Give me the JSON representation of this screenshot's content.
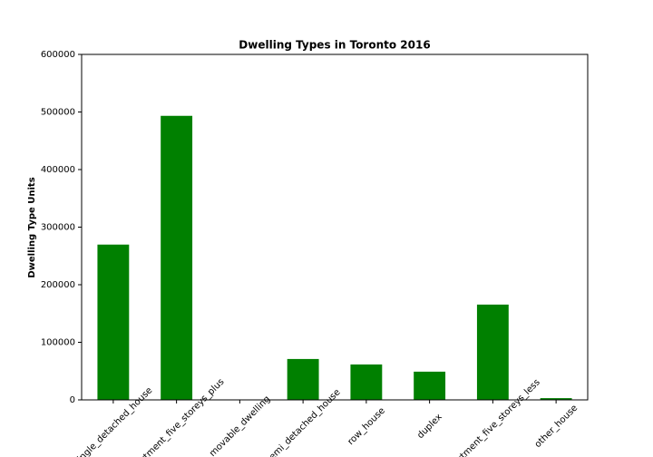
{
  "chart_data": {
    "type": "bar",
    "title": "Dwelling Types in Toronto 2016",
    "y_label": "Dwelling Type Units",
    "categories": [
      "single_detached_house",
      "apartment_five_storeys_plus",
      "movable_dwelling",
      "semi_detached_house",
      "row_house",
      "duplex",
      "apartment_five_storeys_less",
      "other_house"
    ],
    "values": [
      269700,
      493300,
      0,
      71000,
      61500,
      49000,
      165500,
      3000
    ],
    "color": "#008000",
    "ylim": [
      0,
      600000
    ],
    "yticks": [
      0,
      100000,
      200000,
      300000,
      400000,
      500000,
      600000
    ],
    "grid": false
  }
}
